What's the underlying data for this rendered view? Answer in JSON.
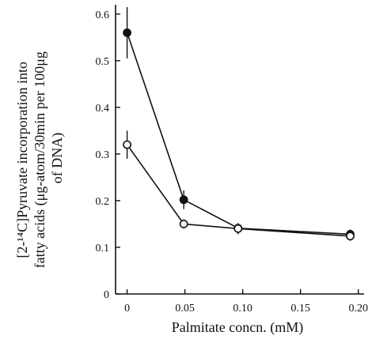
{
  "chart_data": {
    "type": "line",
    "title": "",
    "xlabel": "Palmitate concn. (mM)",
    "ylabel_lines": [
      "[2-¹⁴C]Pyruvate incorporation into",
      "fatty acids (μg-atom/30min per 100μg",
      "of DNA)"
    ],
    "xlim": [
      -0.01,
      0.205
    ],
    "ylim": [
      0,
      0.62
    ],
    "x_ticks": [
      0,
      0.05,
      0.1,
      0.15,
      0.2
    ],
    "x_tick_labels": [
      "0",
      "0.05",
      "0.10",
      "0.15",
      "0.20"
    ],
    "y_ticks": [
      0,
      0.1,
      0.2,
      0.3,
      0.4,
      0.5,
      0.6
    ],
    "y_tick_labels": [
      "0",
      "0.1",
      "0.2",
      "0.3",
      "0.4",
      "0.5",
      "0.6"
    ],
    "series": [
      {
        "marker": "filled-circle",
        "x": [
          0,
          0.049,
          0.096,
          0.193
        ],
        "y": [
          0.56,
          0.202,
          0.141,
          0.128
        ],
        "err": [
          0.055,
          0.02,
          0.005,
          0.01
        ]
      },
      {
        "marker": "open-circle",
        "x": [
          0,
          0.049,
          0.096,
          0.193
        ],
        "y": [
          0.32,
          0.15,
          0.14,
          0.124
        ],
        "err": [
          0.03,
          0.01,
          0.012,
          0.01
        ]
      }
    ]
  }
}
